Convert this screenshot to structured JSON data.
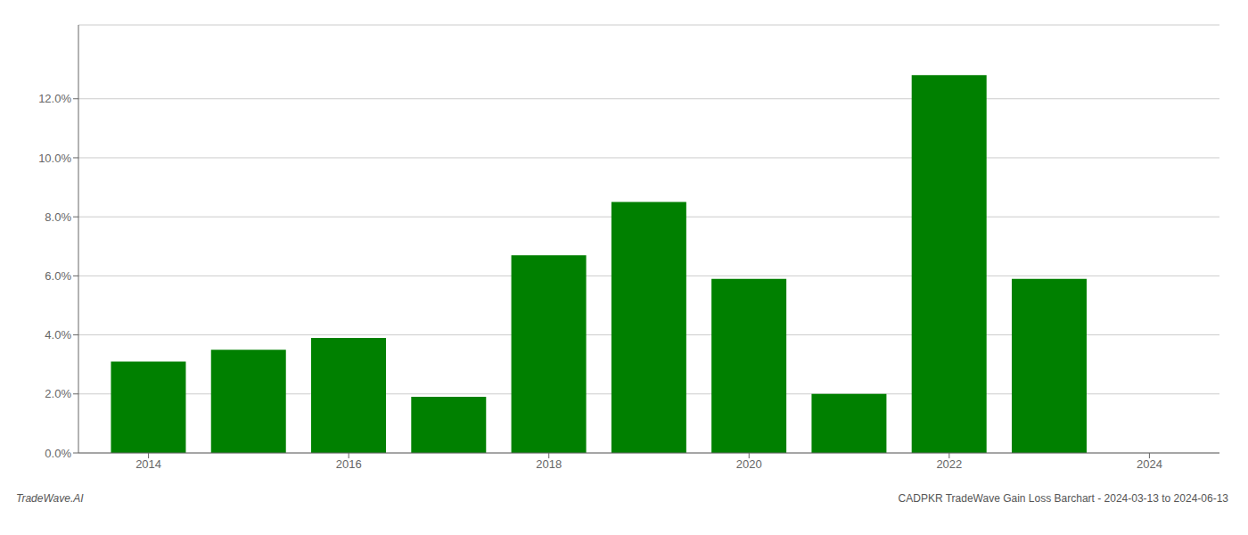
{
  "chart_data": {
    "type": "bar",
    "x": [
      2014,
      2015,
      2016,
      2017,
      2018,
      2019,
      2020,
      2021,
      2022,
      2023
    ],
    "values": [
      0.031,
      0.035,
      0.039,
      0.019,
      0.067,
      0.085,
      0.059,
      0.02,
      0.128,
      0.059
    ],
    "color": "#008000",
    "xlim": [
      2013.3,
      2024.7
    ],
    "xticks": [
      2014,
      2016,
      2018,
      2020,
      2022,
      2024
    ],
    "ylim": [
      0,
      0.145
    ],
    "yticks": [
      {
        "value": 0,
        "label": "0.0%"
      },
      {
        "value": 0.02,
        "label": "2.0%"
      },
      {
        "value": 0.04,
        "label": "4.0%"
      },
      {
        "value": 0.06,
        "label": "6.0%"
      },
      {
        "value": 0.08,
        "label": "8.0%"
      },
      {
        "value": 0.1,
        "label": "10.0%"
      },
      {
        "value": 0.12,
        "label": "12.0%"
      }
    ],
    "grid": true,
    "annotations": [
      "TradeWave.AI",
      "CADPKR TradeWave Gain Loss Barchart - 2024-03-13 to 2024-06-13"
    ]
  }
}
